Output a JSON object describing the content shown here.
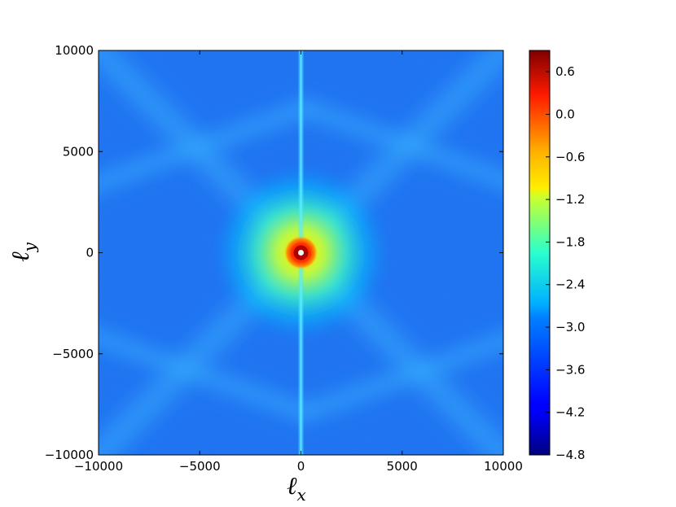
{
  "chart_data": {
    "type": "heatmap",
    "title": "",
    "description_source": "2D power spectrum map in Fourier space",
    "x_axis": {
      "label_main": "ℓ",
      "label_sub": "x",
      "range": [
        -10000,
        10000
      ],
      "ticks": [
        -10000,
        -5000,
        0,
        5000,
        10000
      ],
      "tick_labels": [
        "−10000",
        "−5000",
        "0",
        "5000",
        "10000"
      ]
    },
    "y_axis": {
      "label_main": "ℓ",
      "label_sub": "y",
      "range": [
        -10000,
        10000
      ],
      "ticks": [
        -10000,
        -5000,
        0,
        5000,
        10000
      ],
      "tick_labels": [
        "−10000",
        "−5000",
        "0",
        "5000",
        "10000"
      ]
    },
    "colorbar": {
      "range": [
        -4.8,
        0.9
      ],
      "ticks": [
        0.6,
        0.0,
        -0.6,
        -1.2,
        -1.8,
        -2.4,
        -3.0,
        -3.6,
        -4.2,
        -4.8
      ],
      "tick_labels": [
        "0.6",
        "0.0",
        "−0.6",
        "−1.2",
        "−1.8",
        "−2.4",
        "−3.0",
        "−3.6",
        "−4.2",
        "−4.8"
      ],
      "colormap": "jet"
    },
    "features": {
      "background_level": -3.6,
      "center_peak_level": 0.6,
      "diagonal_arm_level": -3.1,
      "vertical_line_level": -2.7
    },
    "grid": false,
    "legend": "none"
  }
}
